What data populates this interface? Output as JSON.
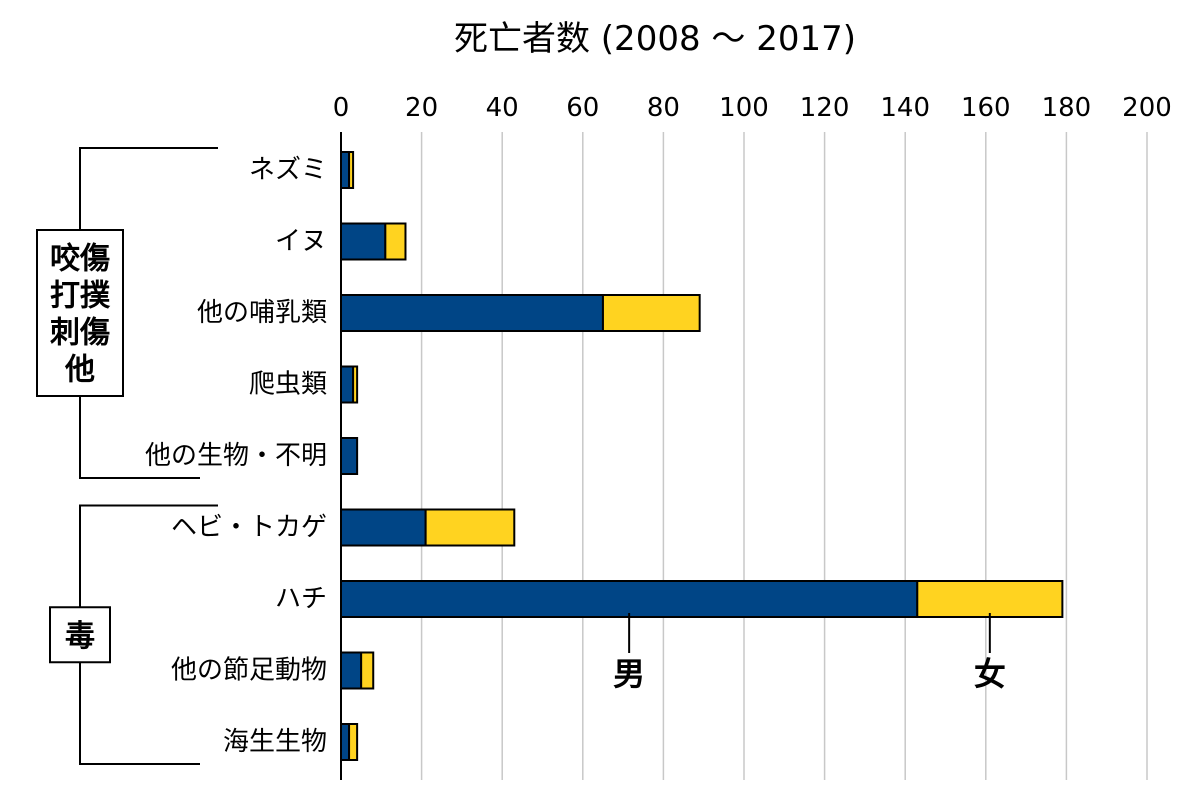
{
  "chart_data": {
    "type": "bar",
    "orientation": "horizontal",
    "stacked": true,
    "title": "死亡者数 (2008 〜 2017)",
    "xlabel": "",
    "ylabel": "",
    "xlim": [
      0,
      200
    ],
    "x_ticks": [
      "0",
      "20",
      "40",
      "60",
      "80",
      "100",
      "120",
      "140",
      "160",
      "180",
      "200"
    ],
    "grid": true,
    "categories": [
      "ネズミ",
      "イヌ",
      "他の哺乳類",
      "爬虫類",
      "他の生物・不明",
      "ヘビ・トカゲ",
      "ハチ",
      "他の節足動物",
      "海生生物"
    ],
    "series": [
      {
        "name": "男",
        "color": "#004586",
        "values": [
          2,
          11,
          65,
          3,
          4,
          21,
          143,
          5,
          2
        ]
      },
      {
        "name": "女",
        "color": "#ffd320",
        "values": [
          1,
          5,
          24,
          1,
          0,
          22,
          36,
          3,
          2
        ]
      }
    ],
    "groups": [
      {
        "label": "咬傷\n打撲\n刺傷\n他",
        "categories": [
          0,
          4
        ]
      },
      {
        "label": "毒",
        "categories": [
          5,
          8
        ]
      }
    ],
    "annotations": [
      {
        "text": "男",
        "series": 0,
        "category": 6
      },
      {
        "text": "女",
        "series": 1,
        "category": 6
      }
    ]
  }
}
